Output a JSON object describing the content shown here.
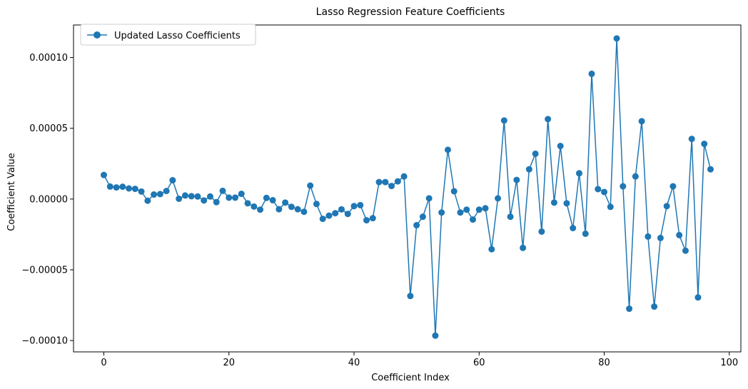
{
  "chart_data": {
    "type": "line",
    "title": "Lasso Regression Feature Coefficients",
    "xlabel": "Coefficient Index",
    "ylabel": "Coefficient Value",
    "xlim": [
      -4.85,
      101.85
    ],
    "ylim": [
      -0.000108,
      0.000123
    ],
    "xticks": [
      0,
      20,
      40,
      60,
      80,
      100
    ],
    "xtick_labels": [
      "0",
      "20",
      "40",
      "60",
      "80",
      "100"
    ],
    "yticks": [
      -0.0001,
      -5e-05,
      0.0,
      5e-05,
      0.0001
    ],
    "ytick_labels": [
      "−0.00010",
      "−0.00005",
      "0.00000",
      "0.00005",
      "0.00010"
    ],
    "legend": {
      "position": "top-left"
    },
    "grid": false,
    "series": [
      {
        "name": "Updated Lasso Coefficients",
        "color": "#1f77b4",
        "marker": "circle",
        "x": [
          0,
          1,
          2,
          3,
          4,
          5,
          6,
          7,
          8,
          9,
          10,
          11,
          12,
          13,
          14,
          15,
          16,
          17,
          18,
          19,
          20,
          21,
          22,
          23,
          24,
          25,
          26,
          27,
          28,
          29,
          30,
          31,
          32,
          33,
          34,
          35,
          36,
          37,
          38,
          39,
          40,
          41,
          42,
          43,
          44,
          45,
          46,
          47,
          48,
          49,
          50,
          51,
          52,
          53,
          54,
          55,
          56,
          57,
          58,
          59,
          60,
          61,
          62,
          63,
          64,
          65,
          66,
          67,
          68,
          69,
          70,
          71,
          72,
          73,
          74,
          75,
          76,
          77,
          78,
          79,
          80,
          81,
          82,
          83,
          84,
          85,
          86,
          87,
          88,
          89,
          90,
          91,
          92,
          93,
          94,
          95,
          96,
          97
        ],
        "values": [
          1.7e-05,
          8.8e-06,
          8.2e-06,
          8.7e-06,
          7.5e-06,
          7.2e-06,
          5.3e-06,
          -1.2e-06,
          3.2e-06,
          3.5e-06,
          5.7e-06,
          1.33e-05,
          2e-07,
          2.5e-06,
          2e-06,
          1.8e-06,
          -1e-06,
          1.8e-06,
          -2.2e-06,
          5.8e-06,
          1e-06,
          1e-06,
          3.7e-06,
          -3e-06,
          -5.3e-06,
          -7.5e-06,
          8e-07,
          -8e-07,
          -7.2e-06,
          -2.5e-06,
          -5.5e-06,
          -7.2e-06,
          -9e-06,
          9.5e-06,
          -3.5e-06,
          -1.4e-05,
          -1.17e-05,
          -1e-05,
          -7.3e-06,
          -1.05e-05,
          -5e-06,
          -4.3e-06,
          -1.5e-05,
          -1.35e-05,
          1.2e-05,
          1.2e-05,
          9.2e-06,
          1.25e-05,
          1.6e-05,
          -6.85e-05,
          -1.85e-05,
          -1.25e-05,
          5e-07,
          -9.65e-05,
          -9.5e-06,
          3.48e-05,
          5.5e-06,
          -9.5e-06,
          -7.5e-06,
          -1.45e-05,
          -7.5e-06,
          -6.5e-06,
          -3.55e-05,
          5e-07,
          5.55e-05,
          -1.25e-05,
          1.35e-05,
          -3.45e-05,
          2.1e-05,
          3.2e-05,
          -2.3e-05,
          5.65e-05,
          -2.5e-06,
          3.75e-05,
          -3e-06,
          -2.05e-05,
          1.82e-05,
          -2.45e-05,
          8.85e-05,
          7e-06,
          5e-06,
          -5.5e-06,
          0.0001135,
          9e-06,
          -7.75e-05,
          1.6e-05,
          5.5e-05,
          -2.65e-05,
          -7.6e-05,
          -2.75e-05,
          -5e-06,
          9e-06,
          -2.55e-05,
          -3.65e-05,
          4.25e-05,
          -6.95e-05,
          3.9e-05,
          2.1e-05
        ]
      }
    ]
  }
}
